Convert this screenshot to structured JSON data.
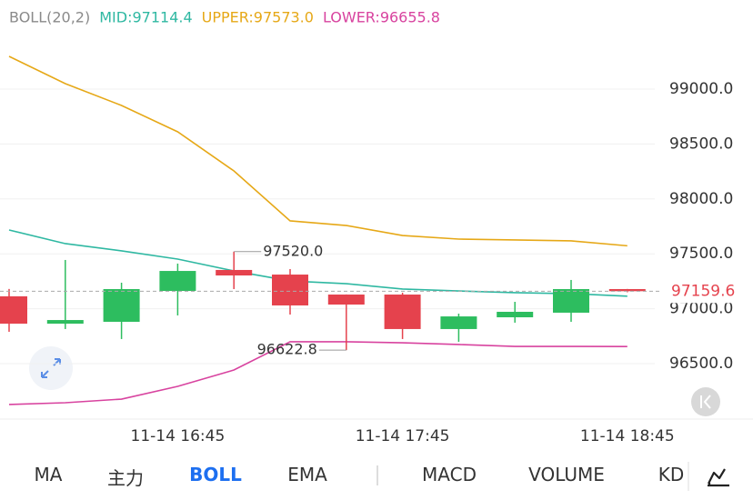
{
  "chart_data": {
    "type": "candlestick",
    "indicator_labels": [
      {
        "text": "BOLL(20,2)",
        "color": "#8a8a8a"
      },
      {
        "text": "MID:97114.4",
        "color": "#2fb8a2"
      },
      {
        "text": "UPPER:97573.0",
        "color": "#e6a817"
      },
      {
        "text": "LOWER:96655.8",
        "color": "#d8439f"
      }
    ],
    "categories": [
      null,
      null,
      null,
      "11-14 16:45",
      null,
      null,
      null,
      "11-14 17:45",
      null,
      null,
      null,
      "11-14 18:45"
    ],
    "open": [
      97113,
      96864,
      96881,
      97162,
      97353,
      97311,
      97129,
      97129,
      96815,
      96922,
      96964,
      97179
    ],
    "high": [
      97180,
      97444,
      97237,
      97411,
      97520,
      97361,
      97130,
      97146,
      96955,
      97063,
      97262,
      97180
    ],
    "low": [
      96790,
      96815,
      96724,
      96939,
      97179,
      96947,
      96622.8,
      96724,
      96699,
      96873,
      96881,
      97150
    ],
    "close": [
      96864,
      96897,
      97179,
      97344,
      97303,
      97030,
      97038,
      96815,
      96930,
      96972,
      97179,
      97159.6
    ],
    "up_color": "#2dbd5f",
    "down_color": "#e5424d",
    "series": [
      {
        "name": "UPPER",
        "color": "#e6a817",
        "values": [
          99298,
          99050,
          98851,
          98611,
          98255,
          97800,
          97758,
          97667,
          97634,
          97626,
          97618,
          97573
        ]
      },
      {
        "name": "MID",
        "color": "#2fb8a2",
        "values": [
          97717,
          97593,
          97527,
          97452,
          97344,
          97253,
          97228,
          97179,
          97162,
          97146,
          97137,
          97114.4
        ]
      },
      {
        "name": "LOWER",
        "color": "#d8439f",
        "values": [
          96128,
          96144,
          96177,
          96293,
          96442,
          96699,
          96699,
          96690,
          96674,
          96657,
          96657,
          96655.8
        ]
      }
    ],
    "ylim": [
      96000,
      99500
    ],
    "yticks": [
      {
        "value": 96500,
        "label": "96500.0"
      },
      {
        "value": 97000,
        "label": "97000.0"
      },
      {
        "value": 97500,
        "label": "97500.0"
      },
      {
        "value": 98000,
        "label": "98000.0"
      },
      {
        "value": 98500,
        "label": "98500.0"
      },
      {
        "value": 99000,
        "label": "99000.0"
      }
    ],
    "grid": true,
    "annotations": [
      {
        "index": 4,
        "value": 97520,
        "label": "97520.0"
      },
      {
        "index": 6,
        "value": 96622.8,
        "label": "96622.8"
      }
    ],
    "last_price": {
      "value": 97159.6,
      "label": "97159.6",
      "color": "#e5424d"
    }
  },
  "tabs": [
    {
      "text": "MA",
      "active": false
    },
    {
      "text": "主力",
      "active": false
    },
    {
      "text": "BOLL",
      "active": true
    },
    {
      "text": "EMA",
      "active": false
    },
    {
      "text": "MACD",
      "active": false
    },
    {
      "text": "VOLUME",
      "active": false
    },
    {
      "text": "KD",
      "active": false
    }
  ]
}
